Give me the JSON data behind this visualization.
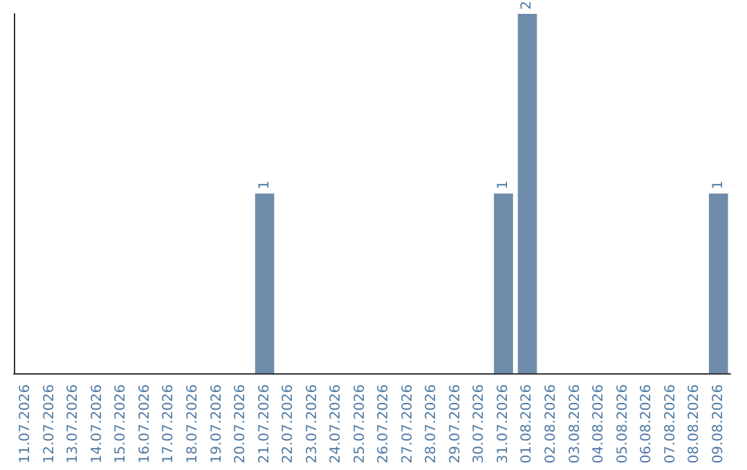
{
  "chart_data": {
    "type": "bar",
    "categories": [
      "11.07.2026",
      "12.07.2026",
      "13.07.2026",
      "14.07.2026",
      "15.07.2026",
      "16.07.2026",
      "17.07.2026",
      "18.07.2026",
      "19.07.2026",
      "20.07.2026",
      "21.07.2026",
      "22.07.2026",
      "23.07.2026",
      "24.07.2026",
      "25.07.2026",
      "26.07.2026",
      "27.07.2026",
      "28.07.2026",
      "29.07.2026",
      "30.07.2026",
      "31.07.2026",
      "01.08.2026",
      "02.08.2026",
      "03.08.2026",
      "04.08.2026",
      "05.08.2026",
      "06.08.2026",
      "07.08.2026",
      "08.08.2026",
      "09.08.2026"
    ],
    "values": [
      0,
      0,
      0,
      0,
      0,
      0,
      0,
      0,
      0,
      0,
      1,
      0,
      0,
      0,
      0,
      0,
      0,
      0,
      0,
      0,
      1,
      2,
      0,
      0,
      0,
      0,
      0,
      0,
      0,
      1
    ],
    "value_labels": [
      null,
      null,
      null,
      null,
      null,
      null,
      null,
      null,
      null,
      null,
      "1",
      null,
      null,
      null,
      null,
      null,
      null,
      null,
      null,
      null,
      "1",
      "2",
      null,
      null,
      null,
      null,
      null,
      null,
      null,
      "1"
    ],
    "color": "#6e8caa",
    "tick_labels": "x",
    "grid": false
  }
}
